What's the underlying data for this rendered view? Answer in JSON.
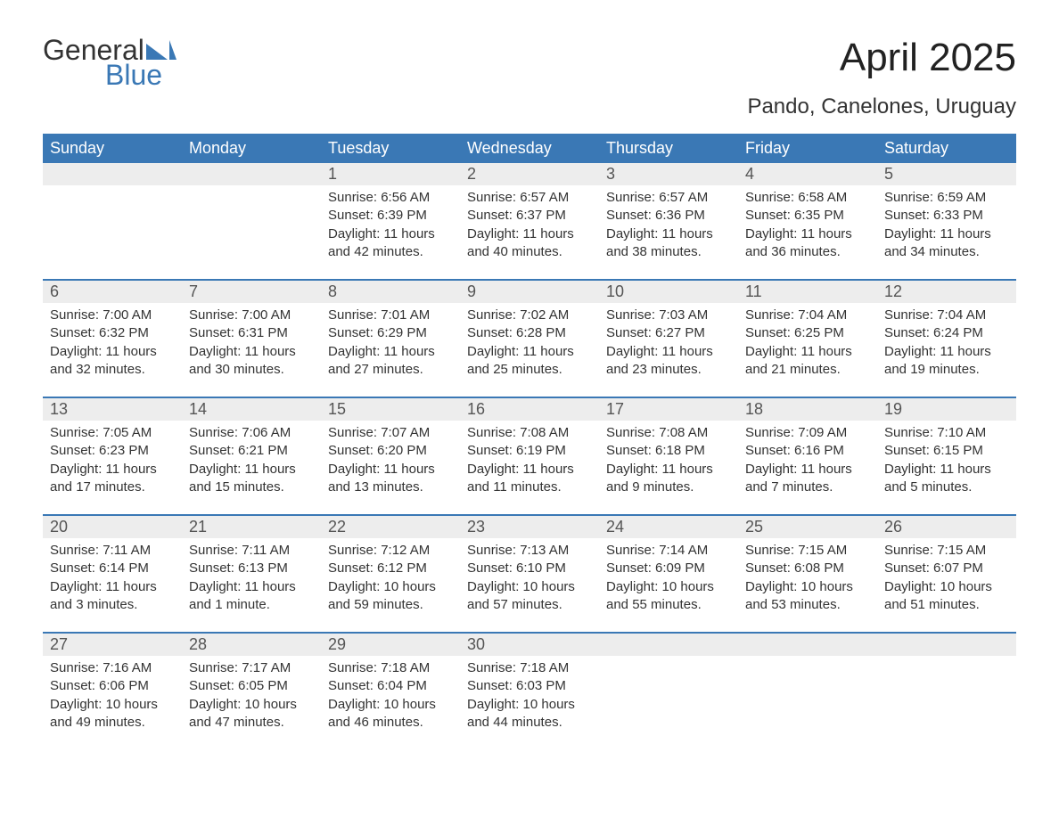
{
  "logo": {
    "line1": "General",
    "line2": "Blue",
    "flag_color": "#3a78b5"
  },
  "title": "April 2025",
  "subtitle": "Pando, Canelones, Uruguay",
  "colors": {
    "header_bg": "#3a78b5",
    "header_text": "#ffffff",
    "numrow_bg": "#ededed",
    "body_text": "#333333",
    "week_rule": "#3a78b5",
    "page_bg": "#ffffff"
  },
  "day_headers": [
    "Sunday",
    "Monday",
    "Tuesday",
    "Wednesday",
    "Thursday",
    "Friday",
    "Saturday"
  ],
  "weeks": [
    [
      {
        "num": "",
        "sunrise": "",
        "sunset": "",
        "daylight": ""
      },
      {
        "num": "",
        "sunrise": "",
        "sunset": "",
        "daylight": ""
      },
      {
        "num": "1",
        "sunrise": "Sunrise: 6:56 AM",
        "sunset": "Sunset: 6:39 PM",
        "daylight": "Daylight: 11 hours and 42 minutes."
      },
      {
        "num": "2",
        "sunrise": "Sunrise: 6:57 AM",
        "sunset": "Sunset: 6:37 PM",
        "daylight": "Daylight: 11 hours and 40 minutes."
      },
      {
        "num": "3",
        "sunrise": "Sunrise: 6:57 AM",
        "sunset": "Sunset: 6:36 PM",
        "daylight": "Daylight: 11 hours and 38 minutes."
      },
      {
        "num": "4",
        "sunrise": "Sunrise: 6:58 AM",
        "sunset": "Sunset: 6:35 PM",
        "daylight": "Daylight: 11 hours and 36 minutes."
      },
      {
        "num": "5",
        "sunrise": "Sunrise: 6:59 AM",
        "sunset": "Sunset: 6:33 PM",
        "daylight": "Daylight: 11 hours and 34 minutes."
      }
    ],
    [
      {
        "num": "6",
        "sunrise": "Sunrise: 7:00 AM",
        "sunset": "Sunset: 6:32 PM",
        "daylight": "Daylight: 11 hours and 32 minutes."
      },
      {
        "num": "7",
        "sunrise": "Sunrise: 7:00 AM",
        "sunset": "Sunset: 6:31 PM",
        "daylight": "Daylight: 11 hours and 30 minutes."
      },
      {
        "num": "8",
        "sunrise": "Sunrise: 7:01 AM",
        "sunset": "Sunset: 6:29 PM",
        "daylight": "Daylight: 11 hours and 27 minutes."
      },
      {
        "num": "9",
        "sunrise": "Sunrise: 7:02 AM",
        "sunset": "Sunset: 6:28 PM",
        "daylight": "Daylight: 11 hours and 25 minutes."
      },
      {
        "num": "10",
        "sunrise": "Sunrise: 7:03 AM",
        "sunset": "Sunset: 6:27 PM",
        "daylight": "Daylight: 11 hours and 23 minutes."
      },
      {
        "num": "11",
        "sunrise": "Sunrise: 7:04 AM",
        "sunset": "Sunset: 6:25 PM",
        "daylight": "Daylight: 11 hours and 21 minutes."
      },
      {
        "num": "12",
        "sunrise": "Sunrise: 7:04 AM",
        "sunset": "Sunset: 6:24 PM",
        "daylight": "Daylight: 11 hours and 19 minutes."
      }
    ],
    [
      {
        "num": "13",
        "sunrise": "Sunrise: 7:05 AM",
        "sunset": "Sunset: 6:23 PM",
        "daylight": "Daylight: 11 hours and 17 minutes."
      },
      {
        "num": "14",
        "sunrise": "Sunrise: 7:06 AM",
        "sunset": "Sunset: 6:21 PM",
        "daylight": "Daylight: 11 hours and 15 minutes."
      },
      {
        "num": "15",
        "sunrise": "Sunrise: 7:07 AM",
        "sunset": "Sunset: 6:20 PM",
        "daylight": "Daylight: 11 hours and 13 minutes."
      },
      {
        "num": "16",
        "sunrise": "Sunrise: 7:08 AM",
        "sunset": "Sunset: 6:19 PM",
        "daylight": "Daylight: 11 hours and 11 minutes."
      },
      {
        "num": "17",
        "sunrise": "Sunrise: 7:08 AM",
        "sunset": "Sunset: 6:18 PM",
        "daylight": "Daylight: 11 hours and 9 minutes."
      },
      {
        "num": "18",
        "sunrise": "Sunrise: 7:09 AM",
        "sunset": "Sunset: 6:16 PM",
        "daylight": "Daylight: 11 hours and 7 minutes."
      },
      {
        "num": "19",
        "sunrise": "Sunrise: 7:10 AM",
        "sunset": "Sunset: 6:15 PM",
        "daylight": "Daylight: 11 hours and 5 minutes."
      }
    ],
    [
      {
        "num": "20",
        "sunrise": "Sunrise: 7:11 AM",
        "sunset": "Sunset: 6:14 PM",
        "daylight": "Daylight: 11 hours and 3 minutes."
      },
      {
        "num": "21",
        "sunrise": "Sunrise: 7:11 AM",
        "sunset": "Sunset: 6:13 PM",
        "daylight": "Daylight: 11 hours and 1 minute."
      },
      {
        "num": "22",
        "sunrise": "Sunrise: 7:12 AM",
        "sunset": "Sunset: 6:12 PM",
        "daylight": "Daylight: 10 hours and 59 minutes."
      },
      {
        "num": "23",
        "sunrise": "Sunrise: 7:13 AM",
        "sunset": "Sunset: 6:10 PM",
        "daylight": "Daylight: 10 hours and 57 minutes."
      },
      {
        "num": "24",
        "sunrise": "Sunrise: 7:14 AM",
        "sunset": "Sunset: 6:09 PM",
        "daylight": "Daylight: 10 hours and 55 minutes."
      },
      {
        "num": "25",
        "sunrise": "Sunrise: 7:15 AM",
        "sunset": "Sunset: 6:08 PM",
        "daylight": "Daylight: 10 hours and 53 minutes."
      },
      {
        "num": "26",
        "sunrise": "Sunrise: 7:15 AM",
        "sunset": "Sunset: 6:07 PM",
        "daylight": "Daylight: 10 hours and 51 minutes."
      }
    ],
    [
      {
        "num": "27",
        "sunrise": "Sunrise: 7:16 AM",
        "sunset": "Sunset: 6:06 PM",
        "daylight": "Daylight: 10 hours and 49 minutes."
      },
      {
        "num": "28",
        "sunrise": "Sunrise: 7:17 AM",
        "sunset": "Sunset: 6:05 PM",
        "daylight": "Daylight: 10 hours and 47 minutes."
      },
      {
        "num": "29",
        "sunrise": "Sunrise: 7:18 AM",
        "sunset": "Sunset: 6:04 PM",
        "daylight": "Daylight: 10 hours and 46 minutes."
      },
      {
        "num": "30",
        "sunrise": "Sunrise: 7:18 AM",
        "sunset": "Sunset: 6:03 PM",
        "daylight": "Daylight: 10 hours and 44 minutes."
      },
      {
        "num": "",
        "sunrise": "",
        "sunset": "",
        "daylight": ""
      },
      {
        "num": "",
        "sunrise": "",
        "sunset": "",
        "daylight": ""
      },
      {
        "num": "",
        "sunrise": "",
        "sunset": "",
        "daylight": ""
      }
    ]
  ]
}
